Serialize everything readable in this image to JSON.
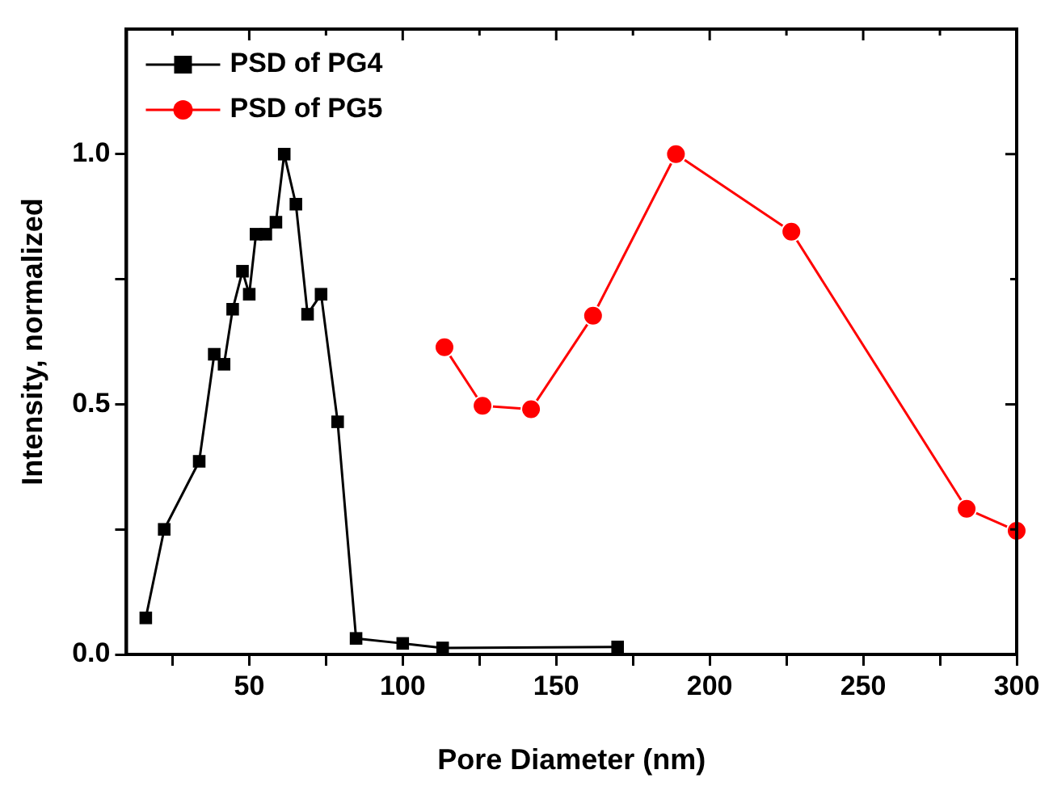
{
  "chart_data": {
    "type": "line",
    "xlabel": "Pore Diameter (nm)",
    "ylabel": "Intensity, normalized",
    "xlim": [
      10,
      300
    ],
    "ylim": [
      0,
      1.25
    ],
    "xticks": [
      {
        "value": 25,
        "label": null
      },
      50,
      {
        "value": 75,
        "label": null
      },
      100,
      {
        "value": 125,
        "label": null
      },
      150,
      {
        "value": 175,
        "label": null
      },
      200,
      {
        "value": 225,
        "label": null
      },
      250,
      {
        "value": 275,
        "label": null
      },
      300
    ],
    "yticks": [
      {
        "value": 0,
        "label": "0.0"
      },
      {
        "value": 0.25,
        "label": null
      },
      {
        "value": 0.5,
        "label": "0.5"
      },
      {
        "value": 0.75,
        "label": null
      },
      {
        "value": 1.0,
        "label": "1.0"
      }
    ],
    "grid": false,
    "legend": "top left",
    "line_style": "solid",
    "series": [
      {
        "name": "PSD of PG4",
        "color": "#000000",
        "marker": "square",
        "x": [
          16.3,
          22.3,
          33.7,
          38.6,
          41.8,
          44.6,
          47.8,
          50,
          52.2,
          55.4,
          58.7,
          61.4,
          65.2,
          69,
          73.4,
          78.8,
          84.8,
          100,
          113,
          170
        ],
        "values": [
          0.073,
          0.25,
          0.386,
          0.6,
          0.58,
          0.69,
          0.766,
          0.72,
          0.84,
          0.84,
          0.864,
          1.0,
          0.9,
          0.68,
          0.72,
          0.465,
          0.032,
          0.022,
          0.013,
          0.015
        ]
      },
      {
        "name": "PSD of PG5",
        "color": "#ff0000",
        "marker": "circle",
        "x": [
          113.6,
          126,
          141.8,
          162,
          189,
          226.6,
          283.7,
          300
        ],
        "values": [
          0.614,
          0.497,
          0.49,
          0.677,
          1.0,
          0.845,
          0.291,
          0.247
        ]
      }
    ]
  }
}
